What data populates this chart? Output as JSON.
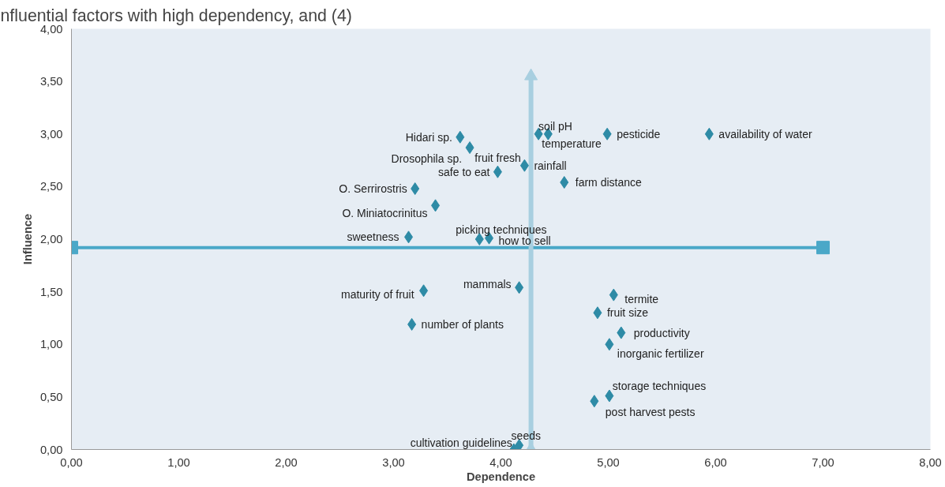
{
  "chart_data": {
    "type": "scatter",
    "xlabel": "Dependence",
    "ylabel": "Influence",
    "marker": "diamond",
    "grid": false,
    "xlim": [
      0,
      8
    ],
    "ylim": [
      0,
      4
    ],
    "xticks": [
      {
        "value": 0,
        "label": "0,00"
      },
      {
        "value": 1,
        "label": "1,00"
      },
      {
        "value": 2,
        "label": "2,00"
      },
      {
        "value": 3,
        "label": "3,00"
      },
      {
        "value": 4,
        "label": "4,00"
      },
      {
        "value": 5,
        "label": "5,00"
      },
      {
        "value": 6,
        "label": "6,00"
      },
      {
        "value": 7,
        "label": "7,00"
      },
      {
        "value": 8,
        "label": "8,00"
      }
    ],
    "yticks": [
      {
        "value": 0,
        "label": "0,00"
      },
      {
        "value": 0.5,
        "label": "0,50"
      },
      {
        "value": 1,
        "label": "1,00"
      },
      {
        "value": 1.5,
        "label": "1,50"
      },
      {
        "value": 2,
        "label": "2,00"
      },
      {
        "value": 2.5,
        "label": "2,50"
      },
      {
        "value": 3,
        "label": "3,00"
      },
      {
        "value": 3.5,
        "label": "3,50"
      },
      {
        "value": 4,
        "label": "4,00"
      }
    ],
    "series": [
      {
        "type": "line",
        "color": "#4aa8c8",
        "marker": "square",
        "x": [
          0,
          7
        ],
        "values": [
          1.92,
          1.92
        ]
      },
      {
        "type": "line",
        "color": "#a8cfe0",
        "marker": "triangle",
        "x": [
          4.28,
          4.28
        ],
        "values": [
          0,
          3.55
        ]
      },
      {
        "color": "#2e8ba6",
        "x": [
          4.35,
          4.44,
          4.99,
          5.94,
          3.62,
          3.71,
          4.2,
          4.22,
          3.97,
          4.59,
          3.2,
          3.39,
          3.14,
          3.8,
          3.89,
          3.28,
          4.17,
          3.17,
          5.05,
          4.9,
          5.12,
          5.01,
          5.01,
          4.87,
          4.17,
          4.12
        ],
        "values": [
          3.0,
          3.0,
          3.0,
          3.0,
          2.97,
          2.87,
          null,
          2.7,
          2.64,
          2.54,
          2.48,
          2.32,
          2.02,
          2.0,
          2.01,
          1.51,
          1.54,
          1.19,
          1.47,
          1.3,
          1.11,
          1.0,
          0.51,
          0.46,
          0.04,
          0.0
        ]
      }
    ],
    "annotations": [
      "nfluential factors with high dependency, and (4)",
      {
        "text": "soil pH",
        "x": 4.35,
        "y": 3.0
      },
      {
        "text": "temperature",
        "x": 4.44,
        "y": 3.0
      },
      {
        "text": "pesticide",
        "x": 4.99,
        "y": 3.0
      },
      {
        "text": "availability of water",
        "x": 5.94,
        "y": 3.0
      },
      {
        "text": "Hidari sp.",
        "x": 3.62,
        "y": 2.97
      },
      {
        "text": "Drosophila sp.",
        "x": 3.71,
        "y": 2.87
      },
      {
        "text": "fruit fresh",
        "x": 4.2,
        "y": 2.7
      },
      {
        "text": "rainfall",
        "x": 4.22,
        "y": 2.7
      },
      {
        "text": "safe to eat",
        "x": 3.97,
        "y": 2.64
      },
      {
        "text": "farm distance",
        "x": 4.59,
        "y": 2.54
      },
      {
        "text": "O. Serrirostris",
        "x": 3.2,
        "y": 2.48
      },
      {
        "text": "O. Miniatocrinitus",
        "x": 3.39,
        "y": 2.32
      },
      {
        "text": "sweetness",
        "x": 3.14,
        "y": 2.02
      },
      {
        "text": "picking techniques",
        "x": 3.8,
        "y": 2.0
      },
      {
        "text": "how to sell",
        "x": 3.89,
        "y": 2.01
      },
      {
        "text": "maturity of fruit",
        "x": 3.28,
        "y": 1.51
      },
      {
        "text": "mammals",
        "x": 4.17,
        "y": 1.54
      },
      {
        "text": "number of plants",
        "x": 3.17,
        "y": 1.19
      },
      {
        "text": "termite",
        "x": 5.05,
        "y": 1.47
      },
      {
        "text": "fruit size",
        "x": 4.9,
        "y": 1.3
      },
      {
        "text": "productivity",
        "x": 5.12,
        "y": 1.11
      },
      {
        "text": "inorganic fertilizer",
        "x": 5.01,
        "y": 1.0
      },
      {
        "text": "storage techniques",
        "x": 5.01,
        "y": 0.51
      },
      {
        "text": "post harvest pests",
        "x": 4.87,
        "y": 0.46
      },
      {
        "text": "seeds",
        "x": 4.17,
        "y": 0.04
      },
      {
        "text": "cultivation guidelines",
        "x": 4.12,
        "y": 0.0
      }
    ]
  }
}
